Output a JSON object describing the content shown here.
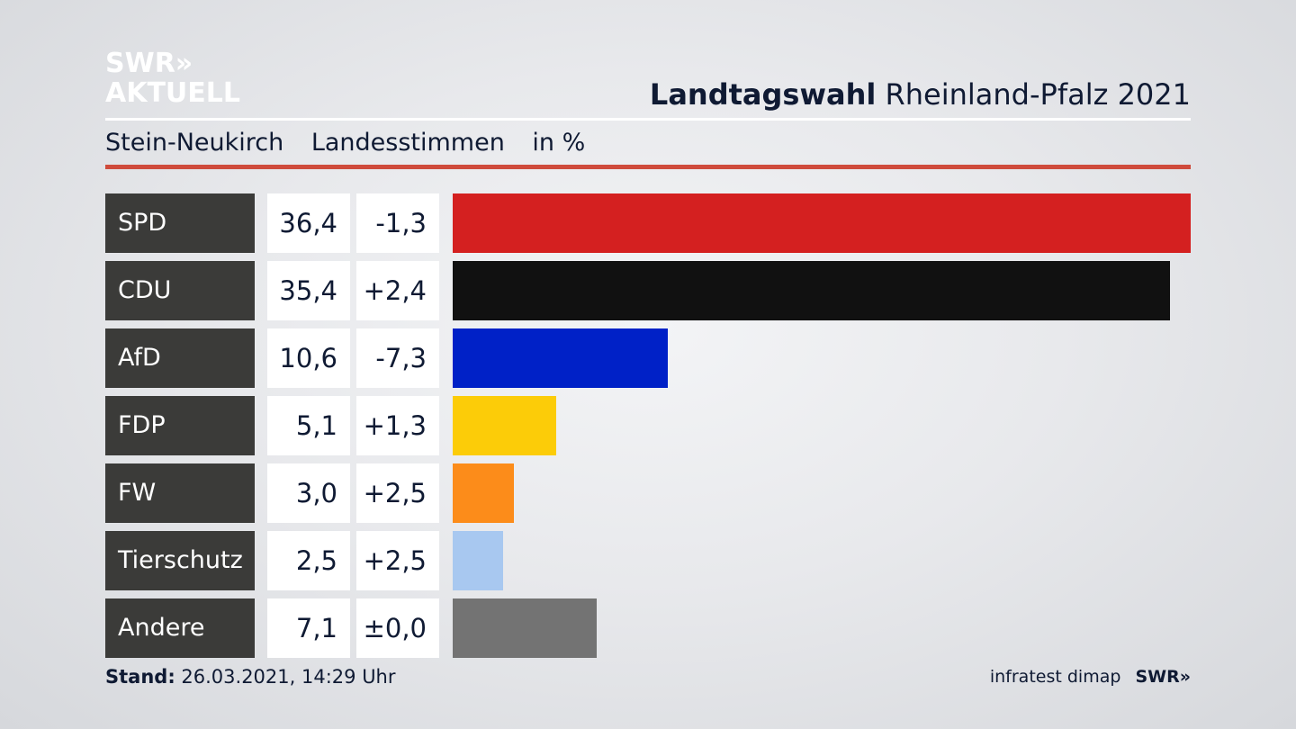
{
  "logo": {
    "line1": "SWR»",
    "line2": "AKTUELL"
  },
  "header": {
    "title_bold": "Landtagswahl",
    "title_rest": "Rheinland-Pfalz 2021",
    "subtitle_place": "Stein-Neukirch",
    "subtitle_type": "Landesstimmen",
    "subtitle_unit": "in %"
  },
  "footer": {
    "stand_label": "Stand:",
    "stand_value": "26.03.2021, 14:29 Uhr",
    "source": "infratest dimap",
    "brand": "SWR»"
  },
  "colors": {
    "accent_red": "#cf4b3c",
    "label_bg": "#3b3b39"
  },
  "chart_data": {
    "type": "bar",
    "title": "Landtagswahl Rheinland-Pfalz 2021",
    "subtitle": "Stein-Neukirch Landesstimmen in %",
    "categories": [
      "SPD",
      "CDU",
      "AfD",
      "FDP",
      "FW",
      "Tierschutz",
      "Andere"
    ],
    "values": [
      36.4,
      35.4,
      10.6,
      5.1,
      3.0,
      2.5,
      7.1
    ],
    "value_labels": [
      "36,4",
      "35,4",
      "10,6",
      "5,1",
      "3,0",
      "2,5",
      "7,1"
    ],
    "diff_labels": [
      "-1,3",
      "+2,4",
      "-7,3",
      "+1,3",
      "+2,5",
      "+2,5",
      "±0,0"
    ],
    "bar_colors": [
      "#d42020",
      "#111111",
      "#0021c7",
      "#fccc08",
      "#fc8c1a",
      "#a8c8f0",
      "#737373"
    ],
    "xlim": [
      0,
      36.4
    ],
    "orientation": "horizontal",
    "grid": false
  }
}
